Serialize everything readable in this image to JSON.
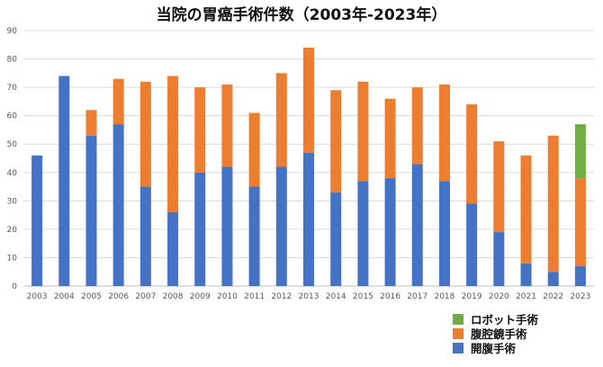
{
  "chart_data": {
    "type": "bar",
    "stacked": true,
    "title": "当院の胃癌手術件数（2003年-2023年）",
    "xlabel": "",
    "ylabel": "",
    "ylim": [
      0,
      90
    ],
    "yticks": [
      0,
      10,
      20,
      30,
      40,
      50,
      60,
      70,
      80,
      90
    ],
    "grid": true,
    "legend_position": "bottom-right",
    "categories": [
      "2003",
      "2004",
      "2005",
      "2006",
      "2007",
      "2008",
      "2009",
      "2010",
      "2011",
      "2012",
      "2013",
      "2014",
      "2015",
      "2016",
      "2017",
      "2018",
      "2019",
      "2020",
      "2021",
      "2022",
      "2023"
    ],
    "series": [
      {
        "name": "開腹手術",
        "color": "#4472C4",
        "values": [
          46,
          74,
          53,
          57,
          35,
          26,
          40,
          42,
          35,
          42,
          47,
          33,
          37,
          38,
          43,
          37,
          29,
          19,
          8,
          5,
          7
        ]
      },
      {
        "name": "腹腔鏡手術",
        "color": "#ED7D31",
        "values": [
          0,
          0,
          9,
          16,
          37,
          48,
          30,
          29,
          26,
          33,
          37,
          36,
          35,
          28,
          27,
          34,
          35,
          32,
          38,
          48,
          31
        ]
      },
      {
        "name": "ロボット手術",
        "color": "#70AD47",
        "values": [
          0,
          0,
          0,
          0,
          0,
          0,
          0,
          0,
          0,
          0,
          0,
          0,
          0,
          0,
          0,
          0,
          0,
          0,
          0,
          0,
          19
        ]
      }
    ],
    "legend_order": [
      "ロボット手術",
      "腹腔鏡手術",
      "開腹手術"
    ]
  }
}
